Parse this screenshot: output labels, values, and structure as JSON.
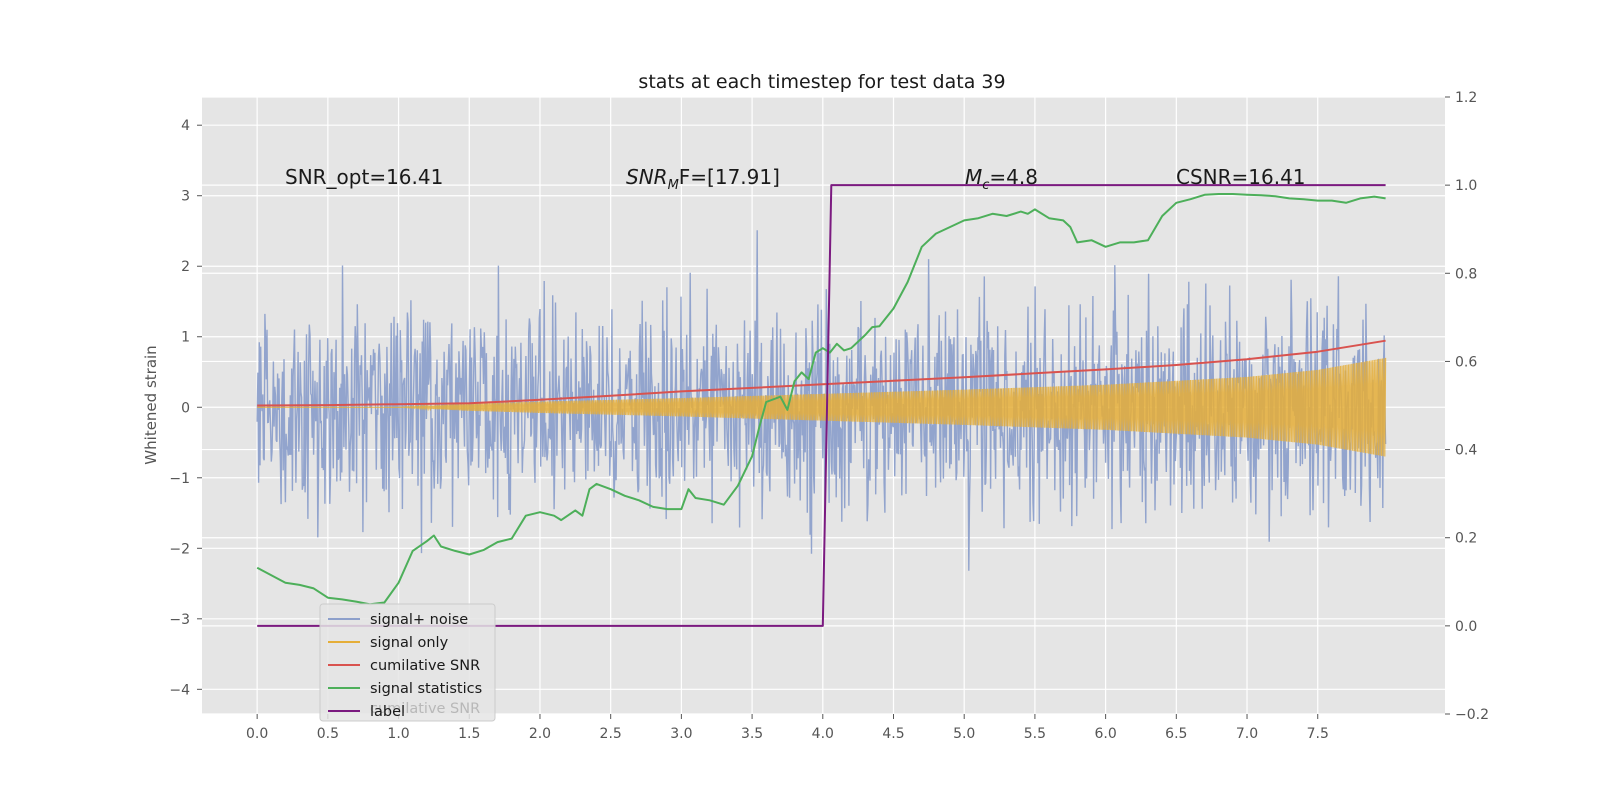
{
  "chart_data": {
    "type": "line",
    "title": "stats at each timestep for test data 39",
    "ylabel": "Whitened strain",
    "xlabel": "",
    "xlim": [
      -0.39,
      8.4
    ],
    "ylim": [
      -4.35,
      4.4
    ],
    "y2lim": [
      -0.2,
      1.2
    ],
    "grid": true,
    "legend_position": "lower-left",
    "x_ticks": [
      "0.0",
      "0.5",
      "1.0",
      "1.5",
      "2.0",
      "2.5",
      "3.0",
      "3.5",
      "4.0",
      "4.5",
      "5.0",
      "5.5",
      "6.0",
      "6.5",
      "7.0",
      "7.5"
    ],
    "y_ticks": [
      "4",
      "3",
      "2",
      "1",
      "0",
      "−1",
      "−2",
      "−3",
      "−4"
    ],
    "y2_ticks": [
      "1.2",
      "1.0",
      "0.8",
      "0.6",
      "0.4",
      "0.2",
      "0.0",
      "−0.2"
    ],
    "annotations": {
      "snr_opt": "SNR_opt=16.41",
      "snr_mf_sym": "SNR",
      "snr_mf_sub": "M",
      "snr_mf_rest": "F=[17.91]",
      "mc_sym": "M",
      "mc_sub": "c",
      "mc_rest": "=4.8",
      "csnr": "CSNR=16.41"
    },
    "legend_overflow_text": "cumilative SNR",
    "series": [
      {
        "name": "signal+ noise",
        "color": "#8da0cb",
        "axis": "left",
        "kind": "noise-band",
        "typical_amplitude": 1.1,
        "peak_amplitude": 3.9
      },
      {
        "name": "signal only",
        "color": "#e5ae38",
        "axis": "left",
        "kind": "chirp-envelope",
        "envelope_x": [
          0.0,
          1.0,
          1.5,
          2.0,
          3.0,
          4.0,
          5.0,
          6.0,
          7.0,
          7.5,
          7.98
        ],
        "envelope_y": [
          0.0,
          0.0,
          0.05,
          0.08,
          0.13,
          0.19,
          0.25,
          0.32,
          0.43,
          0.53,
          0.7
        ]
      },
      {
        "name": "cumilative SNR",
        "color": "#d9534f",
        "axis": "right",
        "x": [
          0.0,
          0.5,
          1.0,
          1.5,
          2.0,
          2.5,
          3.0,
          3.5,
          4.0,
          4.5,
          5.0,
          5.5,
          6.0,
          6.5,
          7.0,
          7.5,
          7.98
        ],
        "y": [
          0.5,
          0.501,
          0.503,
          0.505,
          0.513,
          0.522,
          0.532,
          0.54,
          0.548,
          0.556,
          0.564,
          0.573,
          0.582,
          0.592,
          0.605,
          0.622,
          0.647
        ]
      },
      {
        "name": "signal statistics",
        "color": "#4daf5a",
        "axis": "right",
        "x": [
          0.0,
          0.1,
          0.2,
          0.3,
          0.4,
          0.5,
          0.6,
          0.7,
          0.8,
          0.9,
          1.0,
          1.1,
          1.2,
          1.25,
          1.3,
          1.4,
          1.5,
          1.6,
          1.7,
          1.8,
          1.9,
          2.0,
          2.1,
          2.15,
          2.25,
          2.3,
          2.35,
          2.4,
          2.5,
          2.6,
          2.7,
          2.8,
          2.9,
          3.0,
          3.05,
          3.1,
          3.2,
          3.3,
          3.4,
          3.5,
          3.55,
          3.6,
          3.7,
          3.75,
          3.8,
          3.85,
          3.9,
          3.95,
          4.0,
          4.05,
          4.1,
          4.15,
          4.2,
          4.3,
          4.35,
          4.4,
          4.5,
          4.6,
          4.7,
          4.8,
          4.9,
          5.0,
          5.1,
          5.2,
          5.3,
          5.4,
          5.45,
          5.5,
          5.6,
          5.7,
          5.75,
          5.8,
          5.9,
          6.0,
          6.1,
          6.2,
          6.3,
          6.4,
          6.5,
          6.6,
          6.7,
          6.8,
          6.9,
          7.0,
          7.1,
          7.2,
          7.3,
          7.4,
          7.5,
          7.6,
          7.7,
          7.8,
          7.9,
          7.98
        ],
        "y": [
          0.132,
          0.115,
          0.098,
          0.093,
          0.085,
          0.064,
          0.06,
          0.055,
          0.049,
          0.053,
          0.098,
          0.17,
          0.192,
          0.205,
          0.18,
          0.17,
          0.162,
          0.172,
          0.19,
          0.198,
          0.25,
          0.258,
          0.25,
          0.24,
          0.262,
          0.25,
          0.31,
          0.322,
          0.31,
          0.295,
          0.285,
          0.27,
          0.265,
          0.265,
          0.31,
          0.29,
          0.285,
          0.275,
          0.318,
          0.385,
          0.45,
          0.508,
          0.52,
          0.49,
          0.555,
          0.575,
          0.56,
          0.62,
          0.63,
          0.62,
          0.64,
          0.625,
          0.63,
          0.66,
          0.678,
          0.68,
          0.72,
          0.78,
          0.86,
          0.89,
          0.905,
          0.92,
          0.925,
          0.935,
          0.93,
          0.94,
          0.935,
          0.945,
          0.925,
          0.92,
          0.905,
          0.87,
          0.875,
          0.86,
          0.87,
          0.87,
          0.875,
          0.93,
          0.96,
          0.968,
          0.978,
          0.98,
          0.98,
          0.978,
          0.977,
          0.975,
          0.97,
          0.968,
          0.965,
          0.965,
          0.96,
          0.97,
          0.974,
          0.97
        ]
      },
      {
        "name": "label",
        "color": "#7b1a80",
        "axis": "right",
        "x": [
          0.0,
          4.0,
          4.06,
          7.98
        ],
        "y": [
          0.0,
          0.0,
          1.0,
          1.0
        ]
      }
    ]
  }
}
